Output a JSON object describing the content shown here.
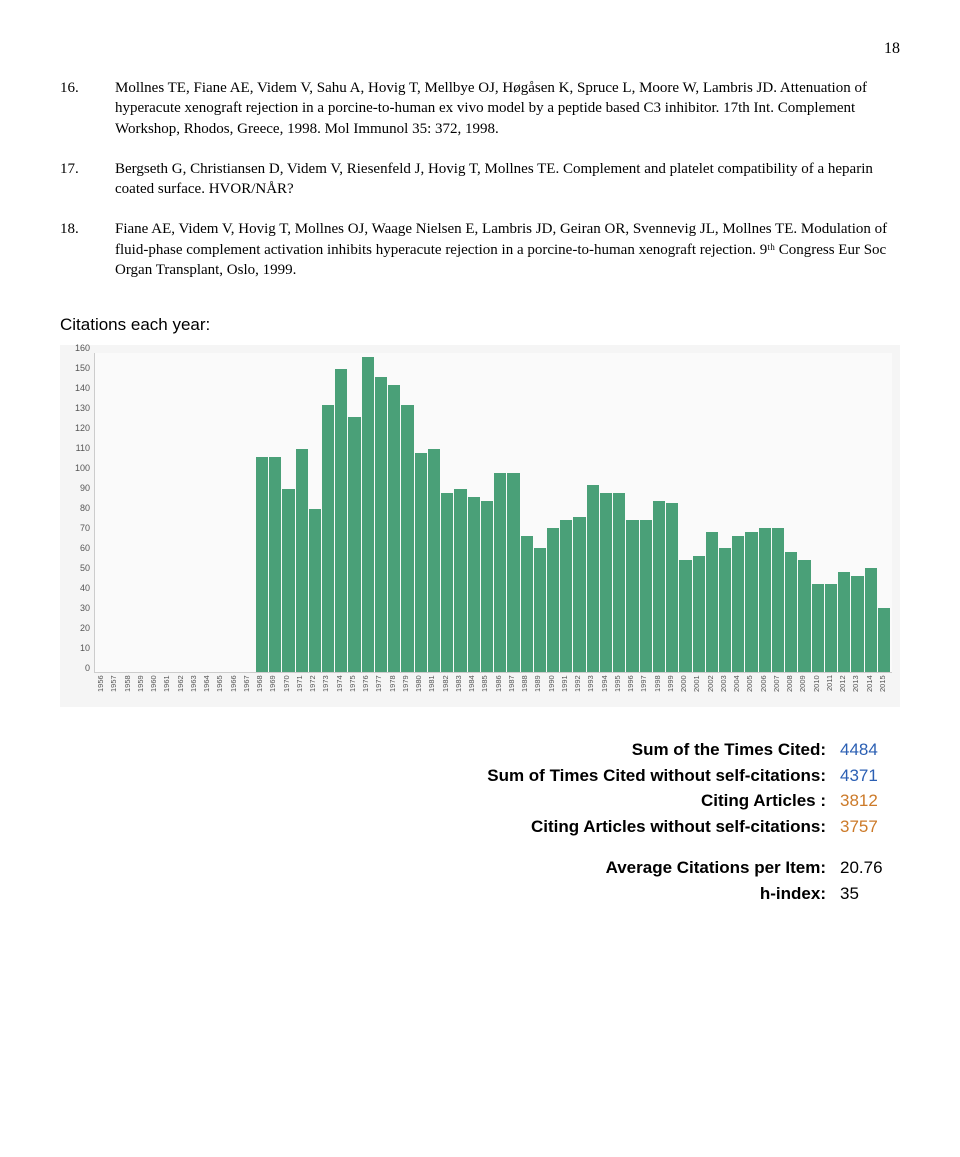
{
  "page_number": "18",
  "references": [
    {
      "num": "16.",
      "text": "Mollnes TE, Fiane AE, Videm V, Sahu A, Hovig T, Mellbye OJ, Høgåsen K, Spruce L, Moore W, Lambris JD. Attenuation of hyperacute xenograft rejection in a porcine-to-human ex vivo model by a peptide based C3 inhibitor. 17th Int. Complement Workshop, Rhodos, Greece, 1998. Mol Immunol 35: 372, 1998."
    },
    {
      "num": "17.",
      "text": "Bergseth G, Christiansen D, Videm V, Riesenfeld J, Hovig T, Mollnes TE. Complement and platelet compatibility of a heparin coated surface. HVOR/NÅR?"
    },
    {
      "num": "18.",
      "text": "Fiane AE, Videm V, Hovig T, Mollnes OJ, Waage Nielsen E, Lambris JD, Geiran OR, Svennevig JL, Mollnes TE. Modulation of fluid-phase complement activation inhibits hyperacute rejection in a porcine-to-human xenograft rejection. 9ᵗʰ Congress Eur Soc Organ Transplant, Oslo, 1999."
    }
  ],
  "chart": {
    "title": "Citations each year:",
    "type": "bar",
    "bar_color": "#4aa078",
    "background_color": "#fafafa",
    "grid_color": "#cccccc",
    "y_max": 160,
    "y_tick_step": 10,
    "y_ticks": [
      "0",
      "10",
      "20",
      "30",
      "40",
      "50",
      "60",
      "70",
      "80",
      "90",
      "100",
      "110",
      "120",
      "130",
      "140",
      "150",
      "160"
    ],
    "years": [
      "1956",
      "1957",
      "1958",
      "1959",
      "1960",
      "1961",
      "1962",
      "1963",
      "1964",
      "1965",
      "1966",
      "1967",
      "1968",
      "1969",
      "1970",
      "1971",
      "1972",
      "1973",
      "1974",
      "1975",
      "1976",
      "1977",
      "1978",
      "1979",
      "1980",
      "1981",
      "1982",
      "1983",
      "1984",
      "1985",
      "1986",
      "1987",
      "1988",
      "1989",
      "1990",
      "1991",
      "1992",
      "1993",
      "1994",
      "1995",
      "1996",
      "1997",
      "1998",
      "1999",
      "2000",
      "2001",
      "2002",
      "2003",
      "2004",
      "2005",
      "2006",
      "2007",
      "2008",
      "2009",
      "2010",
      "2011",
      "2012",
      "2013",
      "2014",
      "2015"
    ],
    "values": [
      0,
      0,
      0,
      0,
      0,
      0,
      0,
      0,
      0,
      0,
      0,
      0,
      108,
      108,
      92,
      112,
      82,
      134,
      152,
      128,
      158,
      148,
      144,
      134,
      110,
      112,
      90,
      92,
      88,
      86,
      100,
      100,
      68,
      62,
      72,
      76,
      78,
      94,
      90,
      90,
      76,
      76,
      86,
      85,
      56,
      58,
      70,
      62,
      68,
      70,
      72,
      72,
      60,
      56,
      44,
      44,
      50,
      48,
      52,
      32
    ]
  },
  "metrics": {
    "group1": [
      {
        "label": "Sum of the Times Cited:",
        "value": "4484",
        "color": "blue"
      },
      {
        "label": "Sum of Times Cited without self-citations:",
        "value": "4371",
        "color": "blue"
      },
      {
        "label": "Citing Articles :",
        "value": "3812",
        "color": "orange"
      },
      {
        "label": "Citing Articles without self-citations:",
        "value": "3757",
        "color": "orange"
      }
    ],
    "group2": [
      {
        "label": "Average Citations per Item:",
        "value": "20.76",
        "color": "black"
      },
      {
        "label": "h-index:",
        "value": "35",
        "color": "black"
      }
    ]
  }
}
